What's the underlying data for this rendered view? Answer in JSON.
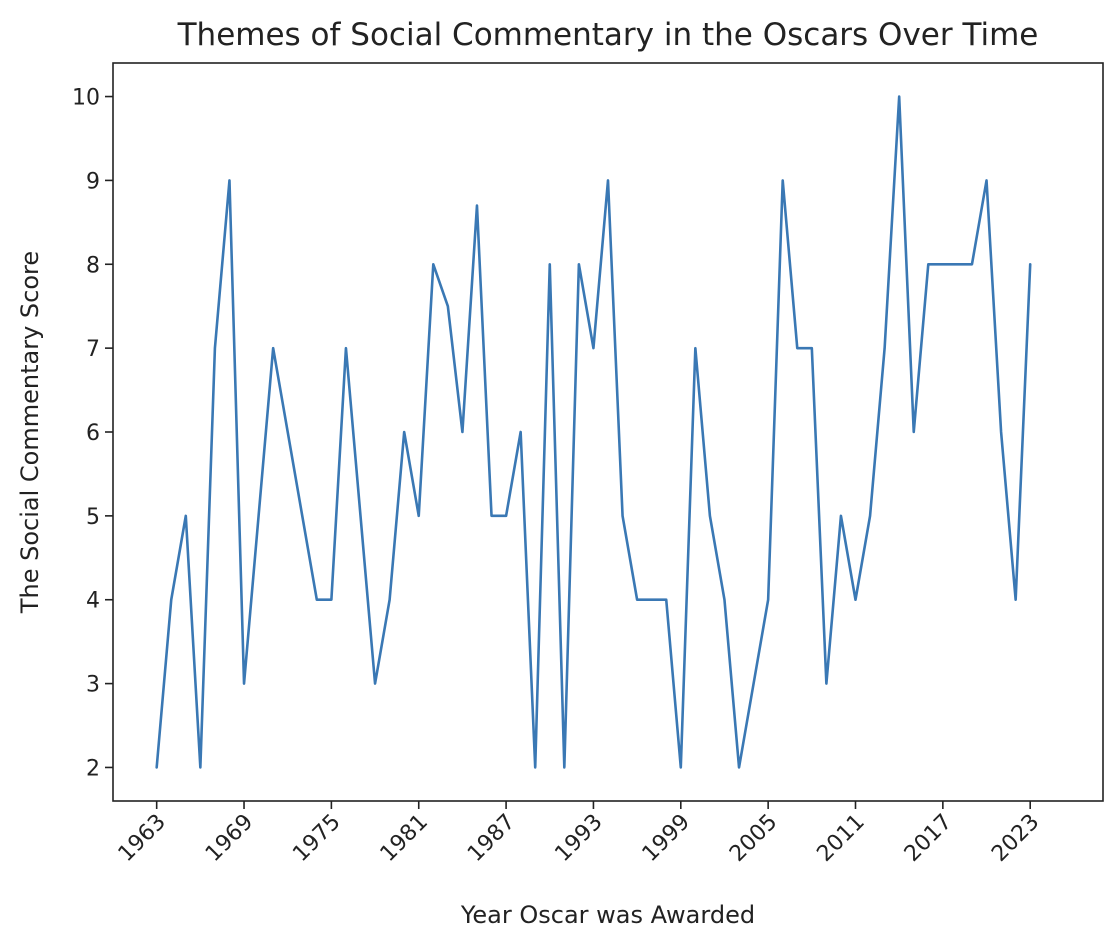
{
  "chart_data": {
    "type": "line",
    "title": "Themes of Social Commentary in the Oscars Over Time",
    "xlabel": "Year Oscar was Awarded",
    "ylabel": "The Social Commentary Score",
    "xlim": [
      1960,
      2028
    ],
    "ylim": [
      1.6,
      10.4
    ],
    "xticks": [
      1963,
      1969,
      1975,
      1981,
      1987,
      1993,
      1999,
      2005,
      2011,
      2017,
      2023
    ],
    "yticks": [
      2,
      3,
      4,
      5,
      6,
      7,
      8,
      9,
      10
    ],
    "grid": false,
    "series": [
      {
        "color": "#3a78b4",
        "x": [
          1963,
          1964,
          1965,
          1966,
          1967,
          1968,
          1969,
          1970,
          1971,
          1972,
          1973,
          1974,
          1975,
          1976,
          1977,
          1978,
          1979,
          1980,
          1981,
          1982,
          1983,
          1984,
          1985,
          1986,
          1987,
          1988,
          1989,
          1990,
          1991,
          1992,
          1993,
          1994,
          1995,
          1996,
          1997,
          1998,
          1999,
          2000,
          2001,
          2002,
          2003,
          2004,
          2005,
          2006,
          2007,
          2008,
          2009,
          2010,
          2011,
          2012,
          2013,
          2014,
          2015,
          2016,
          2017,
          2018,
          2019,
          2020,
          2021,
          2022,
          2023
        ],
        "values": [
          2,
          4,
          5,
          2,
          7,
          9,
          3,
          5,
          7,
          6,
          5,
          4,
          4,
          7,
          5,
          3,
          4,
          6,
          5,
          8,
          7.5,
          6,
          8.7,
          5,
          5,
          6,
          2,
          8,
          2,
          8,
          7,
          9,
          5,
          4,
          4,
          4,
          2,
          7,
          5,
          4,
          2,
          3,
          4,
          9,
          7,
          7,
          3,
          5,
          4,
          5,
          7,
          10,
          6,
          8,
          8,
          8,
          8,
          9,
          6,
          4,
          8
        ]
      }
    ]
  }
}
